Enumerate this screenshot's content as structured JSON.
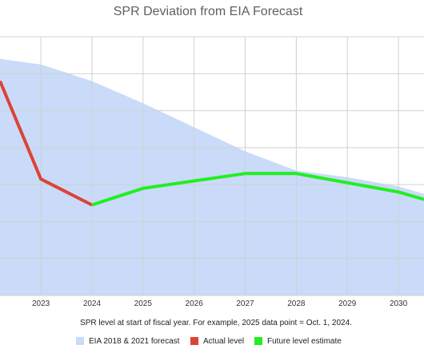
{
  "chart_data": {
    "type": "line",
    "title": "SPR Deviation from EIA Forecast",
    "xlabel": "SPR level at start of fiscal year. For example, 2025 data point = Oct. 1, 2024.",
    "ylabel": "",
    "x_ticks": [
      2023,
      2024,
      2025,
      2026,
      2027,
      2028,
      2029,
      2030
    ],
    "xlim": [
      2022.2,
      2030.5
    ],
    "ylim": [
      0,
      7
    ],
    "grid": true,
    "legend_position": "bottom",
    "series": [
      {
        "name": "EIA 2018 & 2021 forecast",
        "kind": "area",
        "color": "#c9dbf9",
        "points": [
          [
            2022.2,
            6.4
          ],
          [
            2023,
            6.25
          ],
          [
            2024,
            5.8
          ],
          [
            2025,
            5.2
          ],
          [
            2026,
            4.55
          ],
          [
            2027,
            3.9
          ],
          [
            2028,
            3.38
          ],
          [
            2029,
            3.2
          ],
          [
            2030,
            2.95
          ],
          [
            2030.5,
            2.75
          ]
        ]
      },
      {
        "name": "Actual level",
        "kind": "line",
        "color": "#db4437",
        "points": [
          [
            2022.2,
            5.8
          ],
          [
            2023,
            3.15
          ],
          [
            2024,
            2.45
          ]
        ]
      },
      {
        "name": "Future level estimate",
        "kind": "line",
        "color": "#22ee22",
        "points": [
          [
            2024,
            2.45
          ],
          [
            2025,
            2.9
          ],
          [
            2026,
            3.1
          ],
          [
            2027,
            3.3
          ],
          [
            2028,
            3.3
          ],
          [
            2029,
            3.05
          ],
          [
            2030,
            2.8
          ],
          [
            2030.5,
            2.6
          ]
        ]
      }
    ]
  }
}
